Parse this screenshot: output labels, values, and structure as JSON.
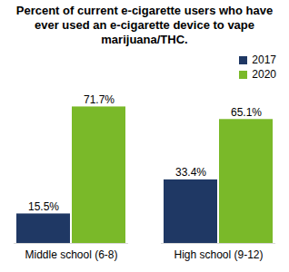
{
  "chart_data": {
    "type": "bar",
    "title": "Percent of current e-cigarette users who have ever used an e-cigarette device to vape marijuana/THC.",
    "categories": [
      "Middle school (6-8)",
      "High school (9-12)"
    ],
    "series": [
      {
        "name": "2017",
        "color": "#1F3864",
        "values": [
          15.5,
          33.4
        ],
        "value_labels": [
          "15.5%",
          "33.4%"
        ]
      },
      {
        "name": "2020",
        "color": "#7AB929",
        "values": [
          71.7,
          65.1
        ],
        "value_labels": [
          "71.7%",
          "65.1%"
        ]
      }
    ],
    "ylim": [
      0,
      80
    ],
    "grid": false,
    "legend": "top-right",
    "data_labels": true,
    "tick_labels": "x"
  }
}
